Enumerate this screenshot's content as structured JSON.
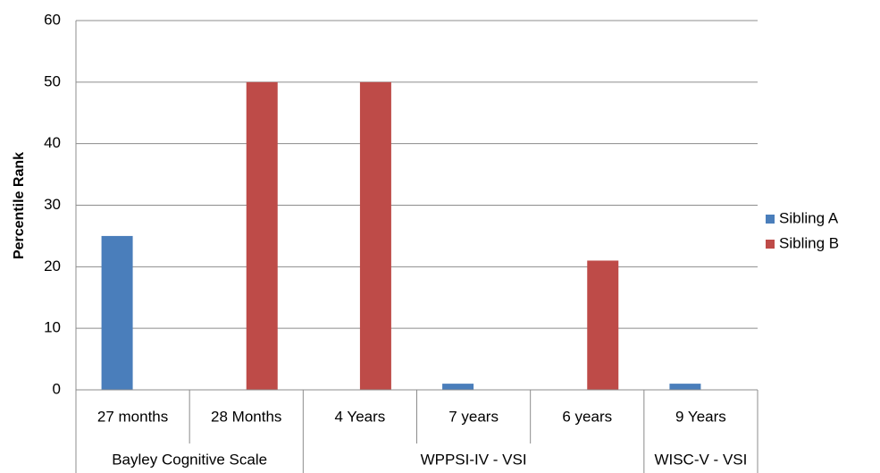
{
  "chart_data": {
    "type": "bar",
    "y_label": "Percentile Rank",
    "categories": [
      "27 months",
      "28 Months",
      "4 Years",
      "7 years",
      "6 years",
      "9 Years"
    ],
    "category_groups": [
      "Bayley Cognitive Scale",
      "Bayley Cognitive Scale",
      "WPPSI-IV - VSI",
      "WPPSI-IV - VSI",
      "WPPSI-IV - VSI",
      "WISC-V - VSI"
    ],
    "series": [
      {
        "name": "Sibling A",
        "color": "#4a7ebb",
        "values": [
          25,
          null,
          null,
          1,
          null,
          1
        ]
      },
      {
        "name": "Sibling B",
        "color": "#be4b48",
        "values": [
          null,
          50,
          50,
          null,
          21,
          null
        ]
      }
    ],
    "ylim": [
      0,
      60
    ],
    "yticks": [
      0,
      10,
      20,
      30,
      40,
      50,
      60
    ],
    "grid": true,
    "legend": "right"
  }
}
